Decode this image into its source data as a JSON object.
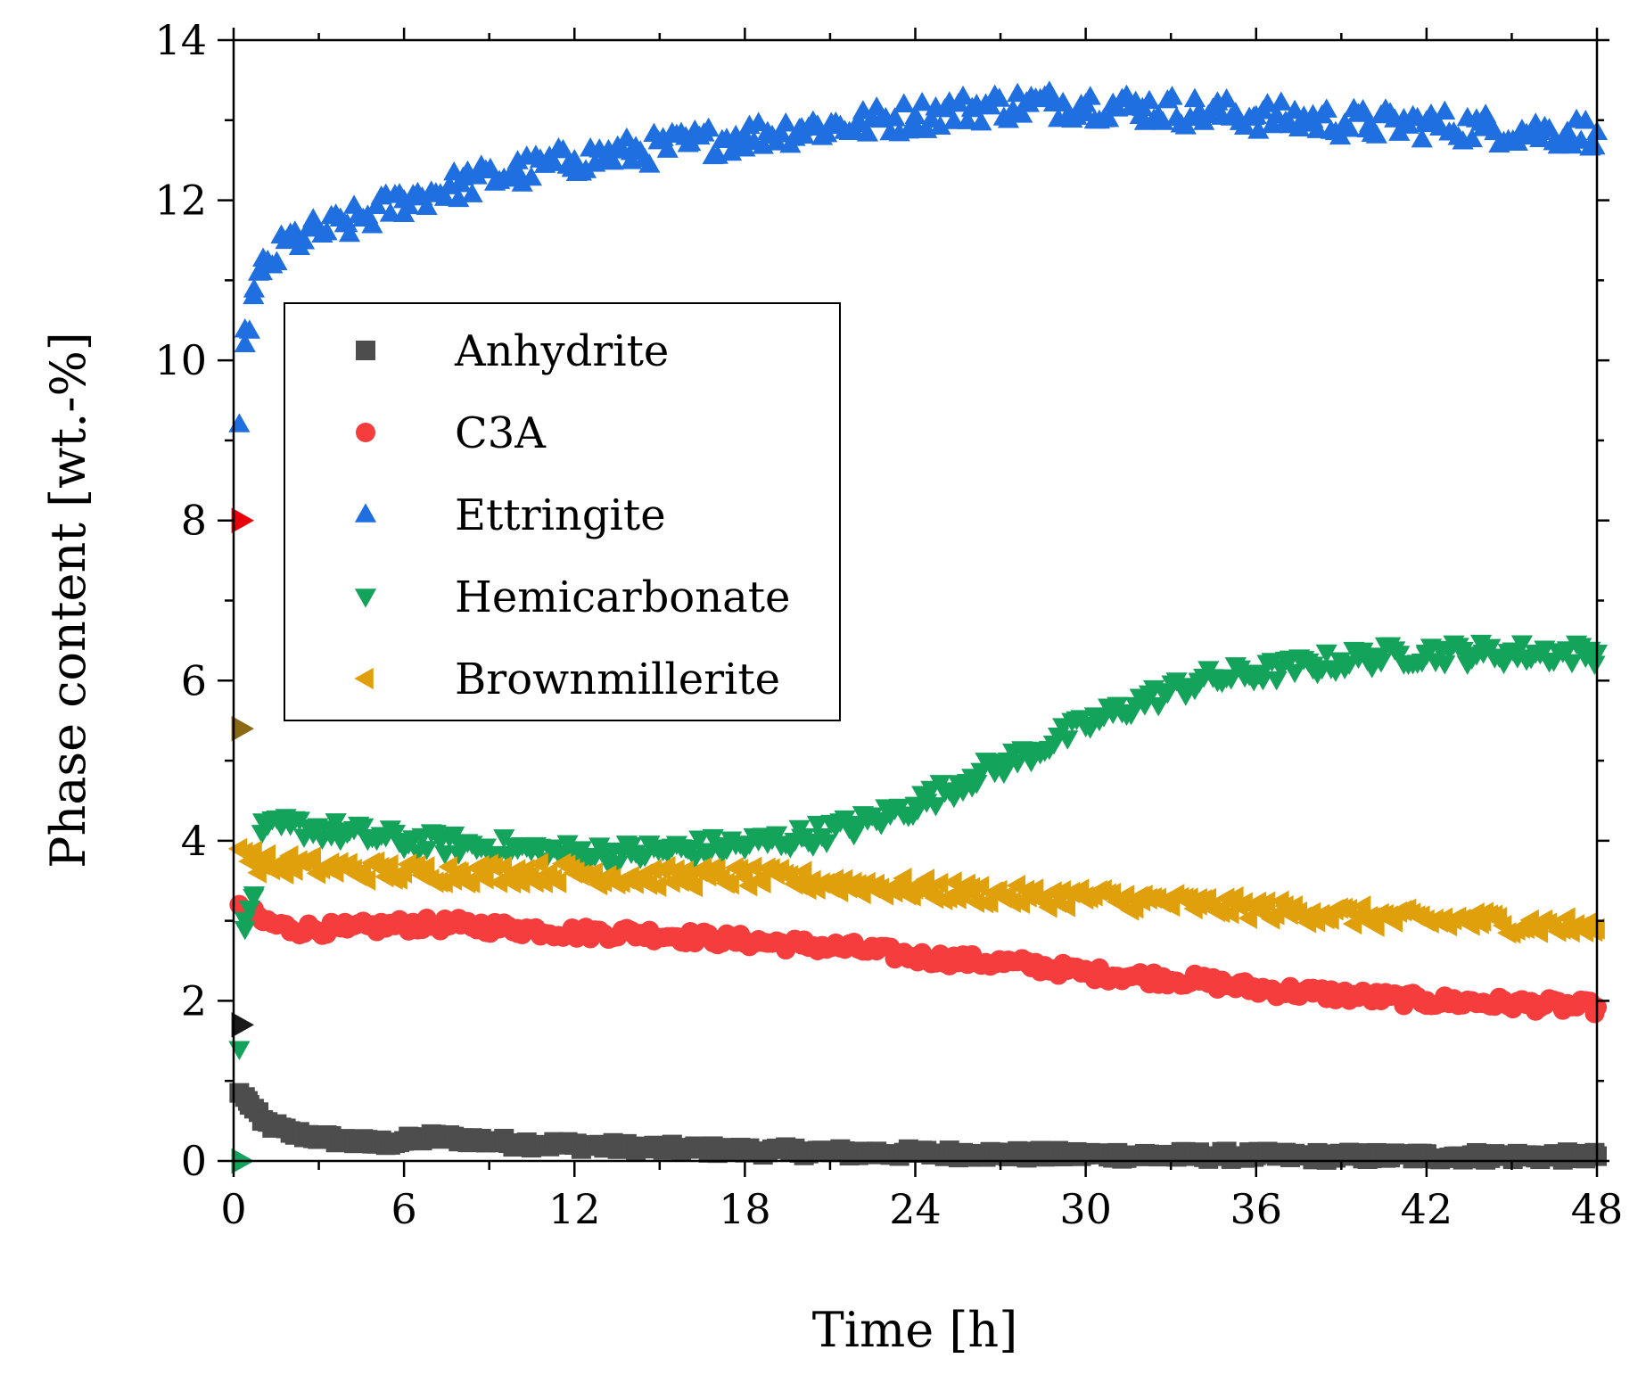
{
  "chart_data": {
    "type": "scatter",
    "title": "",
    "xlabel": "Time [h]",
    "ylabel": "Phase content [wt.-%]",
    "xlim": [
      0,
      48
    ],
    "ylim": [
      0,
      14
    ],
    "xticks": [
      0,
      6,
      12,
      18,
      24,
      30,
      36,
      42,
      48
    ],
    "yticks": [
      0,
      2,
      4,
      6,
      8,
      10,
      12,
      14
    ],
    "grid": false,
    "legend_position": "upper-left",
    "series": [
      {
        "name": "Anhydrite",
        "marker": "square",
        "color": "#4d4d4d",
        "initial_value": 1.7,
        "initial_color": "#1a1a1a",
        "points": [
          [
            0.2,
            0.85
          ],
          [
            0.5,
            0.75
          ],
          [
            1,
            0.5
          ],
          [
            2,
            0.35
          ],
          [
            3,
            0.3
          ],
          [
            4,
            0.25
          ],
          [
            5,
            0.22
          ],
          [
            6,
            0.25
          ],
          [
            7,
            0.3
          ],
          [
            8,
            0.28
          ],
          [
            9,
            0.25
          ],
          [
            10,
            0.22
          ],
          [
            12,
            0.2
          ],
          [
            14,
            0.17
          ],
          [
            16,
            0.15
          ],
          [
            18,
            0.13
          ],
          [
            20,
            0.12
          ],
          [
            22,
            0.1
          ],
          [
            24,
            0.1
          ],
          [
            26,
            0.09
          ],
          [
            28,
            0.08
          ],
          [
            30,
            0.08
          ],
          [
            32,
            0.07
          ],
          [
            34,
            0.07
          ],
          [
            36,
            0.07
          ],
          [
            38,
            0.06
          ],
          [
            40,
            0.06
          ],
          [
            42,
            0.06
          ],
          [
            44,
            0.06
          ],
          [
            46,
            0.06
          ],
          [
            48,
            0.06
          ]
        ]
      },
      {
        "name": "C3A",
        "marker": "circle",
        "color": "#f53d3d",
        "initial_value": 8.0,
        "initial_color": "#e8000b",
        "points": [
          [
            0.2,
            3.2
          ],
          [
            1,
            3.0
          ],
          [
            2,
            2.9
          ],
          [
            4,
            2.9
          ],
          [
            6,
            2.95
          ],
          [
            8,
            2.95
          ],
          [
            10,
            2.9
          ],
          [
            12,
            2.85
          ],
          [
            14,
            2.85
          ],
          [
            16,
            2.8
          ],
          [
            18,
            2.75
          ],
          [
            20,
            2.7
          ],
          [
            22,
            2.65
          ],
          [
            24,
            2.55
          ],
          [
            26,
            2.5
          ],
          [
            28,
            2.45
          ],
          [
            30,
            2.35
          ],
          [
            32,
            2.3
          ],
          [
            34,
            2.25
          ],
          [
            36,
            2.15
          ],
          [
            38,
            2.1
          ],
          [
            40,
            2.05
          ],
          [
            42,
            2.0
          ],
          [
            44,
            1.98
          ],
          [
            46,
            1.95
          ],
          [
            48,
            1.92
          ]
        ]
      },
      {
        "name": "Ettringite",
        "marker": "triangle-up",
        "color": "#1f6fe0",
        "initial_value": 0.0,
        "initial_color": "#1f6fe0",
        "points": [
          [
            0.2,
            9.2
          ],
          [
            0.4,
            10.2
          ],
          [
            0.7,
            10.8
          ],
          [
            1,
            11.1
          ],
          [
            2,
            11.5
          ],
          [
            4,
            11.7
          ],
          [
            6,
            12.0
          ],
          [
            8,
            12.2
          ],
          [
            10,
            12.35
          ],
          [
            12,
            12.5
          ],
          [
            14,
            12.6
          ],
          [
            16,
            12.7
          ],
          [
            18,
            12.8
          ],
          [
            20,
            12.9
          ],
          [
            22,
            12.95
          ],
          [
            24,
            13.05
          ],
          [
            26,
            13.15
          ],
          [
            28,
            13.2
          ],
          [
            30,
            13.2
          ],
          [
            32,
            13.15
          ],
          [
            34,
            13.1
          ],
          [
            36,
            13.05
          ],
          [
            38,
            13.0
          ],
          [
            40,
            12.95
          ],
          [
            42,
            12.95
          ],
          [
            44,
            12.9
          ],
          [
            46,
            12.85
          ],
          [
            48,
            12.85
          ]
        ]
      },
      {
        "name": "Hemicarbonate",
        "marker": "triangle-down",
        "color": "#13a35a",
        "initial_value": 0.0,
        "initial_color": "#13a35a",
        "points": [
          [
            0.2,
            1.4
          ],
          [
            0.4,
            2.9
          ],
          [
            0.7,
            3.3
          ],
          [
            1,
            4.1
          ],
          [
            2,
            4.2
          ],
          [
            4,
            4.1
          ],
          [
            6,
            4.0
          ],
          [
            8,
            3.95
          ],
          [
            10,
            3.9
          ],
          [
            12,
            3.85
          ],
          [
            14,
            3.85
          ],
          [
            16,
            3.9
          ],
          [
            18,
            3.95
          ],
          [
            20,
            4.05
          ],
          [
            22,
            4.2
          ],
          [
            24,
            4.45
          ],
          [
            26,
            4.8
          ],
          [
            28,
            5.1
          ],
          [
            30,
            5.45
          ],
          [
            32,
            5.75
          ],
          [
            34,
            6.0
          ],
          [
            36,
            6.1
          ],
          [
            38,
            6.2
          ],
          [
            40,
            6.3
          ],
          [
            42,
            6.35
          ],
          [
            44,
            6.35
          ],
          [
            46,
            6.35
          ],
          [
            48,
            6.35
          ]
        ]
      },
      {
        "name": "Brownmillerite",
        "marker": "triangle-left",
        "color": "#e0a00b",
        "initial_value": 5.4,
        "initial_color": "#8b6914",
        "points": [
          [
            0.2,
            3.9
          ],
          [
            1,
            3.7
          ],
          [
            2,
            3.7
          ],
          [
            4,
            3.65
          ],
          [
            6,
            3.6
          ],
          [
            8,
            3.6
          ],
          [
            10,
            3.6
          ],
          [
            12,
            3.6
          ],
          [
            14,
            3.55
          ],
          [
            16,
            3.55
          ],
          [
            18,
            3.55
          ],
          [
            20,
            3.5
          ],
          [
            22,
            3.45
          ],
          [
            24,
            3.4
          ],
          [
            26,
            3.35
          ],
          [
            28,
            3.3
          ],
          [
            30,
            3.3
          ],
          [
            32,
            3.25
          ],
          [
            34,
            3.2
          ],
          [
            36,
            3.15
          ],
          [
            38,
            3.1
          ],
          [
            40,
            3.05
          ],
          [
            42,
            3.0
          ],
          [
            44,
            3.0
          ],
          [
            46,
            2.95
          ],
          [
            48,
            2.9
          ]
        ]
      }
    ]
  }
}
